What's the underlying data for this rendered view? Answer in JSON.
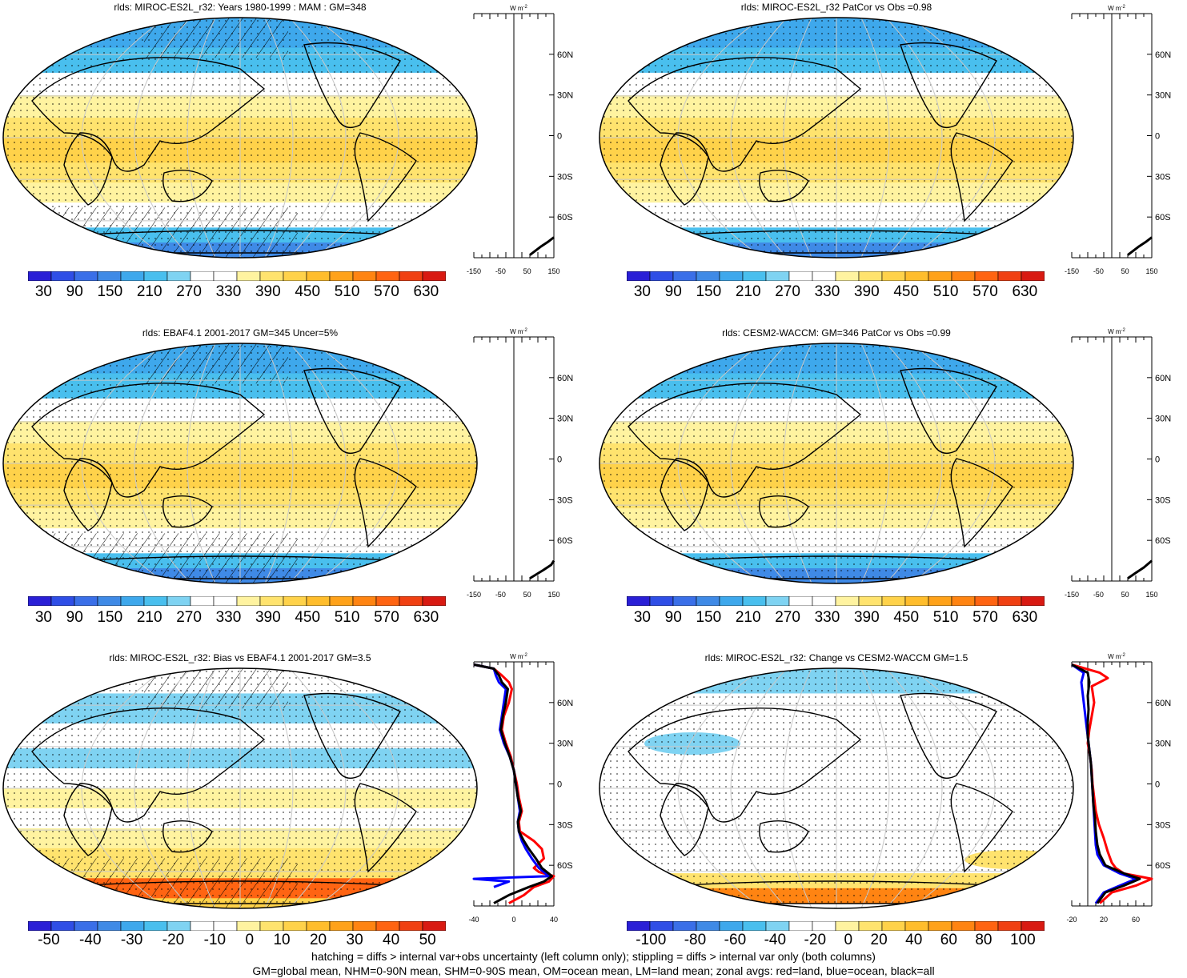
{
  "panels": [
    {
      "title": "rlds: MIROC-ES2L_r32: Years 1980-1999 : MAM : GM=348",
      "kind": "abs",
      "hatch": true,
      "stipple": true,
      "zonal": "abs1"
    },
    {
      "title": "rlds: MIROC-ES2L_r32 PatCor vs Obs =0.98",
      "kind": "abs",
      "hatch": false,
      "stipple": true,
      "zonal": "abs1"
    },
    {
      "title": "rlds: EBAF4.1 2001-2017 GM=345 Uncer=5%",
      "kind": "abs",
      "hatch": true,
      "stipple": true,
      "zonal": "abs2"
    },
    {
      "title": "rlds: CESM2-WACCM: GM=346 PatCor vs Obs =0.99",
      "kind": "abs",
      "hatch": false,
      "stipple": true,
      "zonal": "abs2"
    },
    {
      "title": "rlds: MIROC-ES2L_r32: Bias vs EBAF4.1 2001-2017 GM=3.5",
      "kind": "bias",
      "hatch": true,
      "stipple": true,
      "zonal": "bias"
    },
    {
      "title": "rlds: MIROC-ES2L_r32: Change vs CESM2-WACCM GM=1.5",
      "kind": "change",
      "hatch": false,
      "stipple": true,
      "zonal": "change"
    }
  ],
  "zonal_axis": {
    "unit": "W m",
    "unit_sup": "-2",
    "lat_labels": [
      "60N",
      "30N",
      "0",
      "30S",
      "60S"
    ],
    "lat_values": [
      60,
      30,
      0,
      -30,
      -60
    ],
    "x_ticks_abs": [
      "-150",
      "-50",
      "50",
      "150"
    ],
    "x_ticks_bias": [
      "-40",
      "0",
      "40"
    ],
    "x_ticks_change": [
      "-20",
      "20",
      "60"
    ]
  },
  "colorbars": {
    "abs": {
      "labels": [
        "30",
        "90",
        "150",
        "210",
        "270",
        "330",
        "390",
        "450",
        "510",
        "570",
        "630"
      ]
    },
    "bias": {
      "labels": [
        "-50",
        "-40",
        "-30",
        "-20",
        "-10",
        "0",
        "10",
        "20",
        "30",
        "40",
        "50"
      ]
    },
    "change": {
      "labels": [
        "-100",
        "-80",
        "-60",
        "-40",
        "-20",
        "0",
        "20",
        "40",
        "60",
        "80",
        "100"
      ]
    }
  },
  "colors": {
    "scale": [
      "#2a1fd6",
      "#2f4ee6",
      "#3a6fe8",
      "#3f8ae6",
      "#3ea8ec",
      "#49bfee",
      "#7fd3f2",
      "#ffffff",
      "#ffffff",
      "#fff3a0",
      "#ffe36e",
      "#ffd24a",
      "#ffbd2c",
      "#ffa21a",
      "#ff8412",
      "#ff6412",
      "#f04012",
      "#d81a12"
    ],
    "zonal_red": "#ff0000",
    "zonal_blue": "#0000ff",
    "zonal_black": "#000000"
  },
  "chart_data": [
    {
      "type": "line",
      "title": "rlds: MIROC-ES2L_r32: Years 1980-1999 : MAM : GM=348",
      "xlabel": "W m-2",
      "xlim": [
        -150,
        150
      ],
      "series": [
        {
          "values": [
            [
              60,
              -88
            ],
            [
              100,
              -82
            ],
            [
              130,
              -78
            ],
            [
              150,
              -75
            ]
          ]
        }
      ]
    },
    {
      "type": "line",
      "title": "rlds: MIROC-ES2L_r32 PatCor vs Obs =0.98",
      "xlabel": "W m-2",
      "xlim": [
        -150,
        150
      ],
      "series": [
        {
          "values": [
            [
              60,
              -88
            ],
            [
              100,
              -82
            ],
            [
              130,
              -78
            ],
            [
              150,
              -75
            ]
          ]
        }
      ]
    },
    {
      "type": "line",
      "title": "rlds: EBAF4.1 2001-2017 GM=345 Uncer=5%",
      "xlabel": "W m-2",
      "xlim": [
        -150,
        150
      ],
      "series": [
        {
          "values": [
            [
              60,
              -88
            ],
            [
              110,
              -82
            ],
            [
              140,
              -78
            ],
            [
              150,
              -75
            ]
          ]
        }
      ]
    },
    {
      "type": "line",
      "title": "rlds: CESM2-WACCM: GM=346 PatCor vs Obs =0.99",
      "xlabel": "W m-2",
      "xlim": [
        -150,
        150
      ],
      "series": [
        {
          "values": [
            [
              60,
              -88
            ],
            [
              90,
              -84
            ],
            [
              120,
              -80
            ],
            [
              150,
              -75
            ]
          ]
        }
      ]
    },
    {
      "type": "line",
      "title": "rlds: MIROC-ES2L_r32: Bias vs EBAF4.1 2001-2017 GM=3.5",
      "xlabel": "W m-2",
      "xlim": [
        -40,
        40
      ],
      "series": [
        {
          "values": [
            [
              -40,
              88
            ],
            [
              -20,
              85
            ],
            [
              -12,
              80
            ],
            [
              -5,
              75
            ],
            [
              -2,
              70
            ],
            [
              -5,
              60
            ],
            [
              -10,
              50
            ],
            [
              -12,
              40
            ],
            [
              -8,
              30
            ],
            [
              -3,
              20
            ],
            [
              0,
              10
            ],
            [
              3,
              0
            ],
            [
              5,
              -10
            ],
            [
              8,
              -20
            ],
            [
              5,
              -28
            ],
            [
              6,
              -35
            ],
            [
              20,
              -42
            ],
            [
              28,
              -48
            ],
            [
              30,
              -55
            ],
            [
              20,
              -62
            ],
            [
              25,
              -65
            ],
            [
              40,
              -68
            ],
            [
              35,
              -72
            ],
            [
              20,
              -76
            ],
            [
              10,
              -82
            ],
            [
              -5,
              -88
            ]
          ]
        },
        {
          "values": [
            [
              -40,
              88
            ],
            [
              -20,
              85
            ],
            [
              -18,
              80
            ],
            [
              -15,
              75
            ],
            [
              -8,
              70
            ],
            [
              -10,
              60
            ],
            [
              -12,
              50
            ],
            [
              -14,
              40
            ],
            [
              -10,
              30
            ],
            [
              -4,
              20
            ],
            [
              0,
              10
            ],
            [
              2,
              0
            ],
            [
              4,
              -10
            ],
            [
              6,
              -20
            ],
            [
              4,
              -28
            ],
            [
              5,
              -35
            ],
            [
              8,
              -42
            ],
            [
              12,
              -48
            ],
            [
              18,
              -55
            ],
            [
              25,
              -62
            ],
            [
              35,
              -68
            ],
            [
              -40,
              -70
            ],
            [
              -5,
              -72
            ],
            [
              -20,
              -76
            ]
          ]
        },
        {
          "values": [
            [
              -40,
              88
            ],
            [
              -20,
              85
            ],
            [
              -15,
              80
            ],
            [
              -12,
              75
            ],
            [
              -6,
              70
            ],
            [
              -8,
              60
            ],
            [
              -11,
              50
            ],
            [
              -13,
              40
            ],
            [
              -9,
              30
            ],
            [
              -4,
              20
            ],
            [
              0,
              10
            ],
            [
              2,
              0
            ],
            [
              4,
              -10
            ],
            [
              7,
              -20
            ],
            [
              4,
              -28
            ],
            [
              5,
              -35
            ],
            [
              10,
              -42
            ],
            [
              15,
              -48
            ],
            [
              22,
              -55
            ],
            [
              28,
              -62
            ],
            [
              38,
              -68
            ],
            [
              30,
              -72
            ],
            [
              15,
              -76
            ],
            [
              -5,
              -82
            ],
            [
              -20,
              -88
            ]
          ]
        }
      ]
    },
    {
      "type": "line",
      "title": "rlds: MIROC-ES2L_r32: Change vs CESM2-WACCM GM=1.5",
      "xlabel": "W m-2",
      "xlim": [
        -20,
        80
      ],
      "series": [
        {
          "values": [
            [
              -20,
              88
            ],
            [
              15,
              82
            ],
            [
              25,
              78
            ],
            [
              5,
              72
            ],
            [
              8,
              60
            ],
            [
              5,
              50
            ],
            [
              2,
              40
            ],
            [
              0,
              30
            ],
            [
              3,
              20
            ],
            [
              5,
              10
            ],
            [
              6,
              0
            ],
            [
              8,
              -10
            ],
            [
              10,
              -20
            ],
            [
              14,
              -30
            ],
            [
              20,
              -40
            ],
            [
              25,
              -50
            ],
            [
              30,
              -58
            ],
            [
              35,
              -62
            ],
            [
              45,
              -66
            ],
            [
              80,
              -70
            ],
            [
              60,
              -75
            ],
            [
              30,
              -80
            ],
            [
              15,
              -88
            ]
          ]
        },
        {
          "values": [
            [
              -20,
              88
            ],
            [
              -5,
              82
            ],
            [
              -8,
              75
            ],
            [
              -6,
              65
            ],
            [
              -4,
              55
            ],
            [
              -2,
              45
            ],
            [
              0,
              35
            ],
            [
              2,
              25
            ],
            [
              4,
              15
            ],
            [
              5,
              5
            ],
            [
              6,
              -5
            ],
            [
              7,
              -15
            ],
            [
              8,
              -25
            ],
            [
              9,
              -35
            ],
            [
              10,
              -45
            ],
            [
              12,
              -52
            ],
            [
              20,
              -60
            ],
            [
              40,
              -66
            ],
            [
              60,
              -70
            ],
            [
              40,
              -75
            ],
            [
              20,
              -80
            ],
            [
              10,
              -88
            ]
          ]
        },
        {
          "values": [
            [
              -20,
              88
            ],
            [
              0,
              82
            ],
            [
              2,
              75
            ],
            [
              0,
              65
            ],
            [
              1,
              55
            ],
            [
              0,
              45
            ],
            [
              0,
              35
            ],
            [
              2,
              25
            ],
            [
              4,
              15
            ],
            [
              5,
              5
            ],
            [
              6,
              -5
            ],
            [
              7,
              -15
            ],
            [
              9,
              -25
            ],
            [
              10,
              -35
            ],
            [
              12,
              -45
            ],
            [
              15,
              -52
            ],
            [
              22,
              -60
            ],
            [
              45,
              -66
            ],
            [
              65,
              -70
            ],
            [
              45,
              -75
            ],
            [
              22,
              -80
            ],
            [
              12,
              -88
            ]
          ]
        }
      ]
    }
  ],
  "footer": {
    "line1": "hatching = diffs > internal var+obs uncertainty (left column only); stippling = diffs > internal var only (both columns)",
    "line2": "GM=global mean, NHM=0-90N mean, SHM=0-90S mean, OM=ocean mean, LM=land mean; zonal avgs: red=land, blue=ocean, black=all"
  }
}
